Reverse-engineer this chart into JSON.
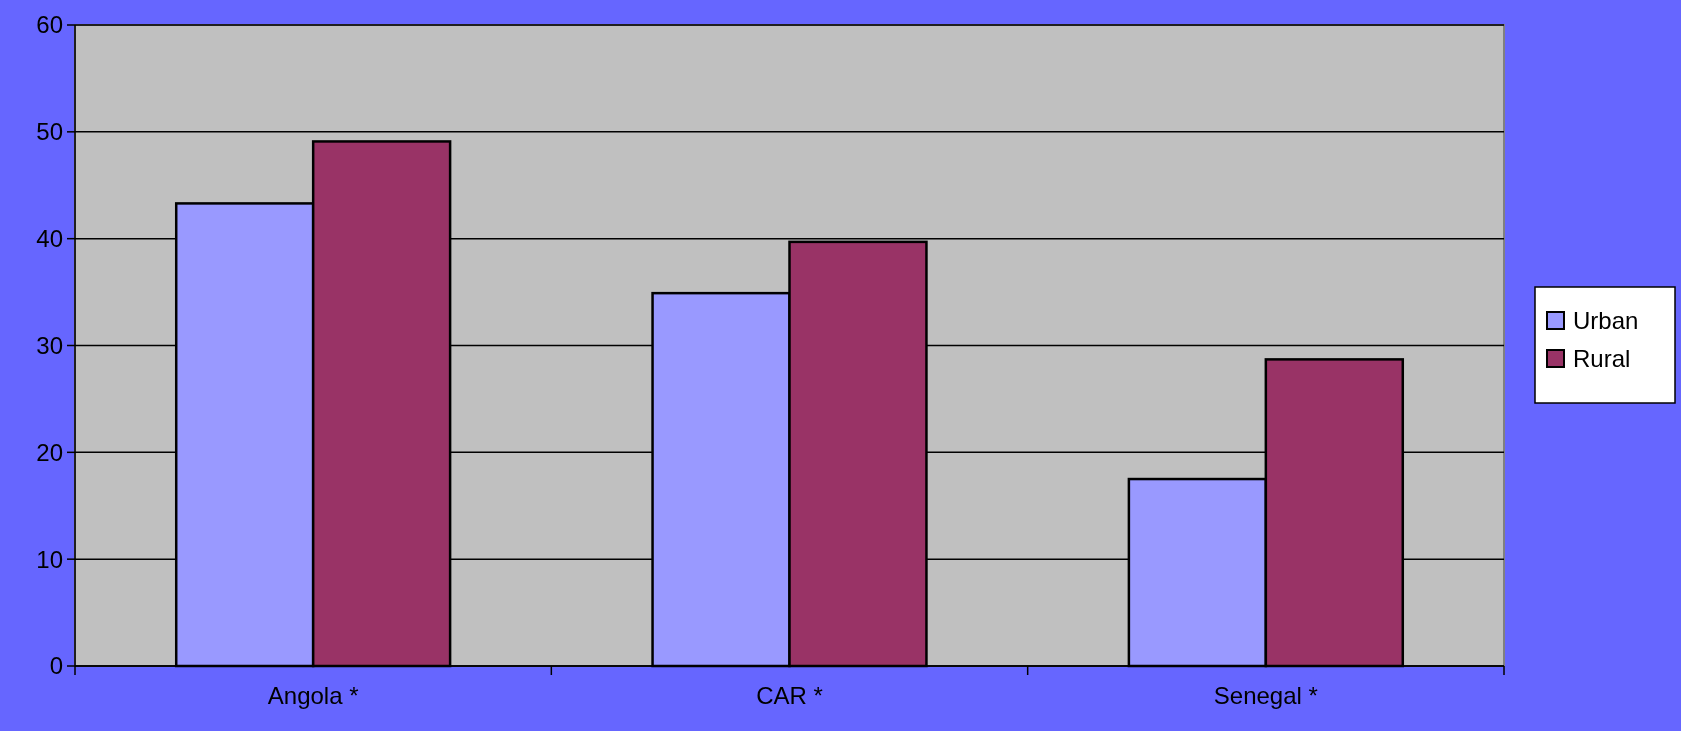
{
  "chart_data": {
    "type": "bar",
    "categories": [
      "Angola *",
      "CAR *",
      "Senegal *"
    ],
    "series": [
      {
        "name": "Urban",
        "color": "#9999ff",
        "values": [
          43.3,
          34.9,
          17.5
        ]
      },
      {
        "name": "Rural",
        "color": "#993366",
        "values": [
          49.1,
          39.7,
          28.7
        ]
      }
    ],
    "ylim": [
      0,
      60
    ],
    "yticks": [
      0,
      10,
      20,
      30,
      40,
      50,
      60
    ],
    "grid": "y",
    "legend": "right"
  }
}
